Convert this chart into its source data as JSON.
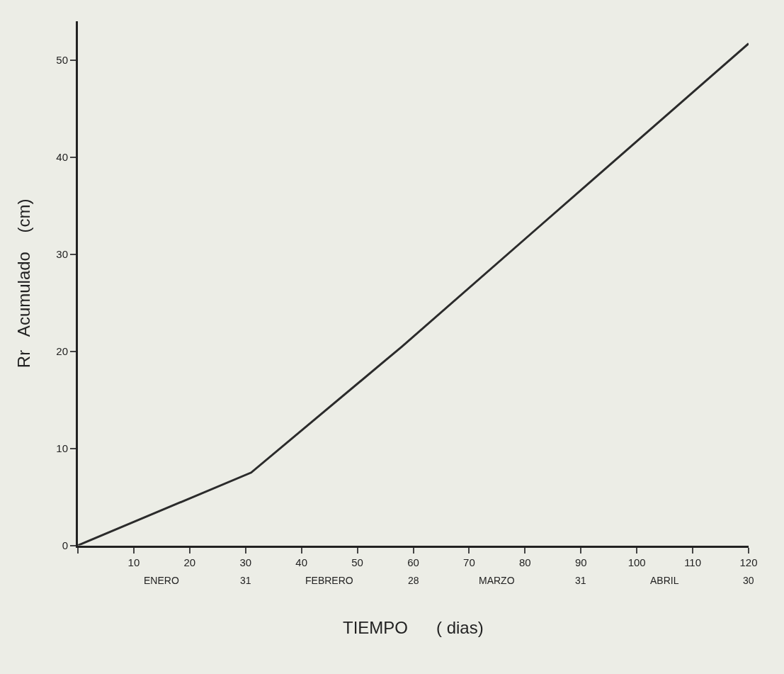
{
  "chart_data": {
    "type": "line",
    "xlabel": "TIEMPO      ( dias)",
    "ylabel": "Rr   Acumulado    (cm)",
    "x": [
      0,
      31,
      58,
      120
    ],
    "values": [
      0,
      7.5,
      20.5,
      51.7
    ],
    "color": "#2b2b2b",
    "marker": "none",
    "line_style": "solid",
    "grid": false,
    "legend": false,
    "xlim": [
      0,
      120
    ],
    "xticks": [
      {
        "value": 0,
        "label": null
      },
      10,
      20,
      30,
      40,
      50,
      60,
      70,
      80,
      90,
      100,
      110,
      120
    ],
    "ylim": [
      0,
      54
    ],
    "yticks": [
      0,
      10,
      20,
      30,
      40,
      50
    ],
    "annotations": [
      "ENERO",
      "31",
      "FEBRERO",
      "28",
      "MARZO",
      "31",
      "ABRIL",
      "30"
    ]
  }
}
